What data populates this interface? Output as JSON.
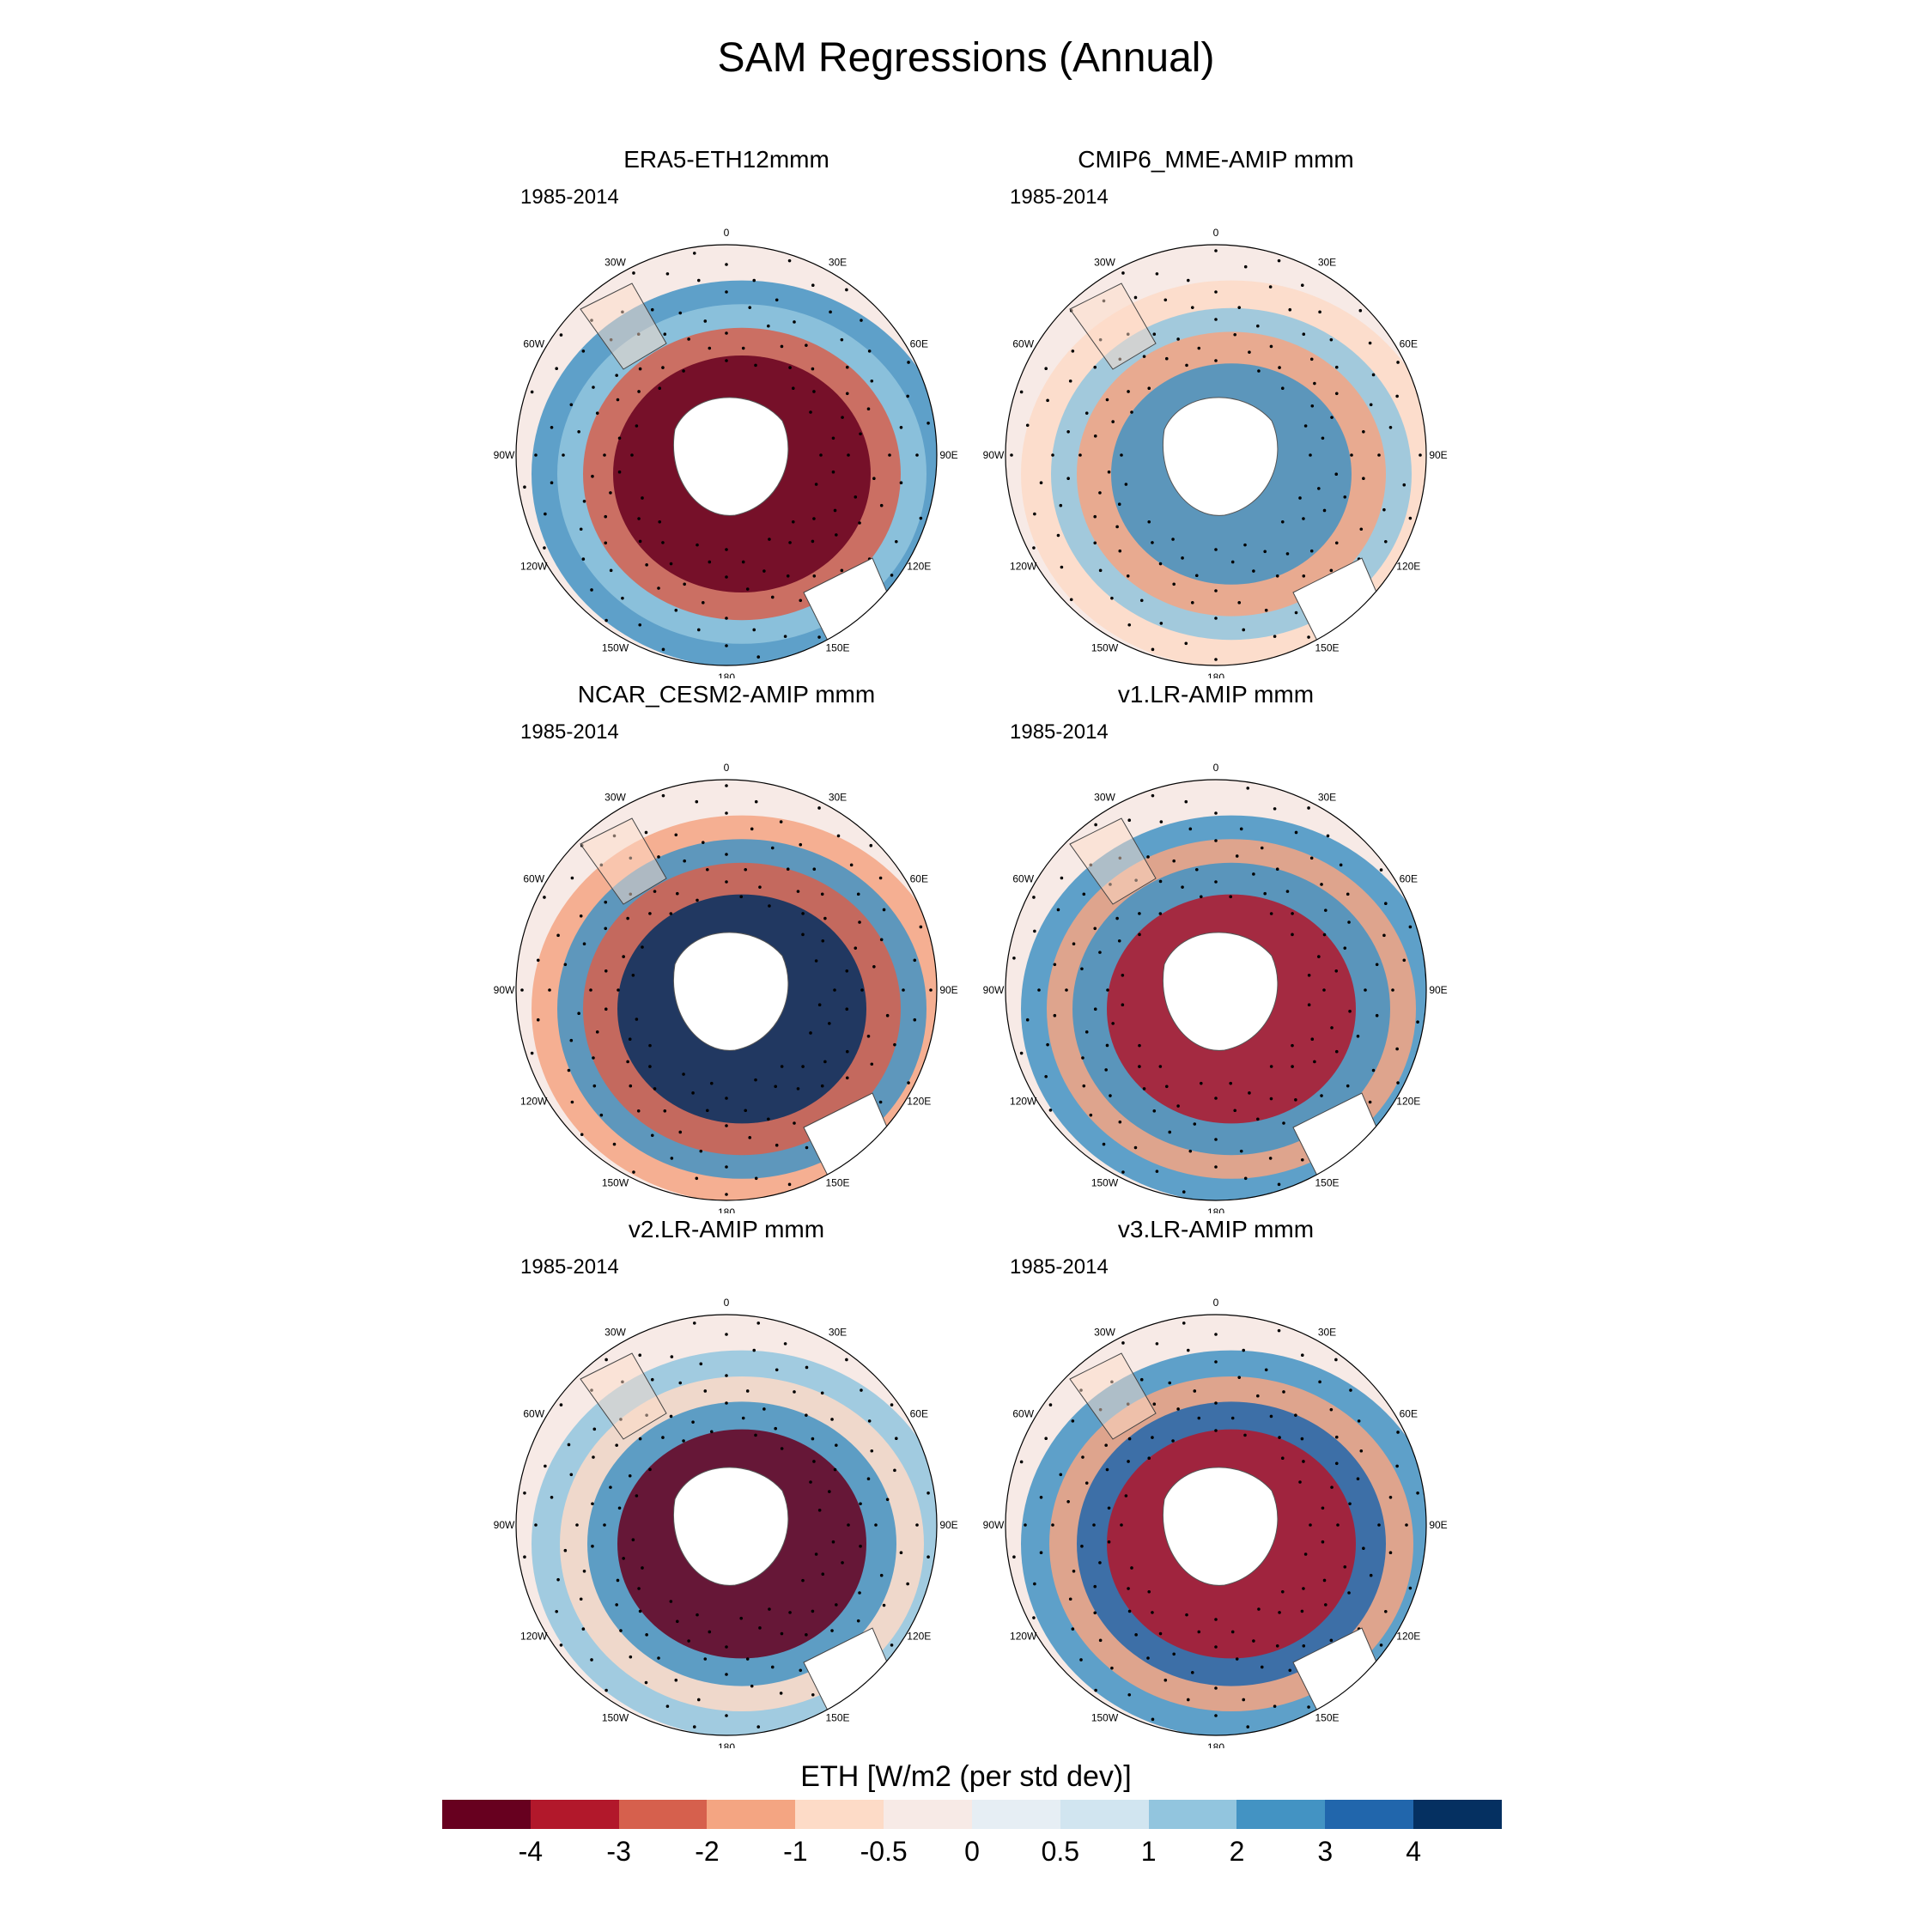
{
  "title": "SAM Regressions (Annual)",
  "panels": [
    {
      "title": "ERA5-ETH12mmm",
      "period": "1985-2014",
      "pattern": "era5"
    },
    {
      "title": "CMIP6_MME-AMIP  mmm",
      "period": "1985-2014",
      "pattern": "cmip6"
    },
    {
      "title": "NCAR_CESM2-AMIP  mmm",
      "period": "1985-2014",
      "pattern": "cesm2"
    },
    {
      "title": "v1.LR-AMIP  mmm",
      "period": "1985-2014",
      "pattern": "v1"
    },
    {
      "title": "v2.LR-AMIP  mmm",
      "period": "1985-2014",
      "pattern": "v2"
    },
    {
      "title": "v3.LR-AMIP  mmm",
      "period": "1985-2014",
      "pattern": "v3"
    }
  ],
  "lon_labels": [
    "0",
    "30E",
    "60E",
    "90E",
    "120E",
    "150E",
    "180",
    "150W",
    "120W",
    "90W",
    "60W",
    "30W"
  ],
  "colorbar": {
    "title": "ETH [W/m2 (per std dev)]",
    "colors": [
      "#67001f",
      "#b2182b",
      "#d6604d",
      "#f4a582",
      "#fddbc7",
      "#f7eae6",
      "#e6eef4",
      "#d1e5f0",
      "#92c5de",
      "#4393c3",
      "#2166ac",
      "#053061"
    ],
    "labels": [
      "-4",
      "-3",
      "-2",
      "-1",
      "-0.5",
      "0",
      "0.5",
      "1",
      "2",
      "3",
      "4"
    ]
  }
}
